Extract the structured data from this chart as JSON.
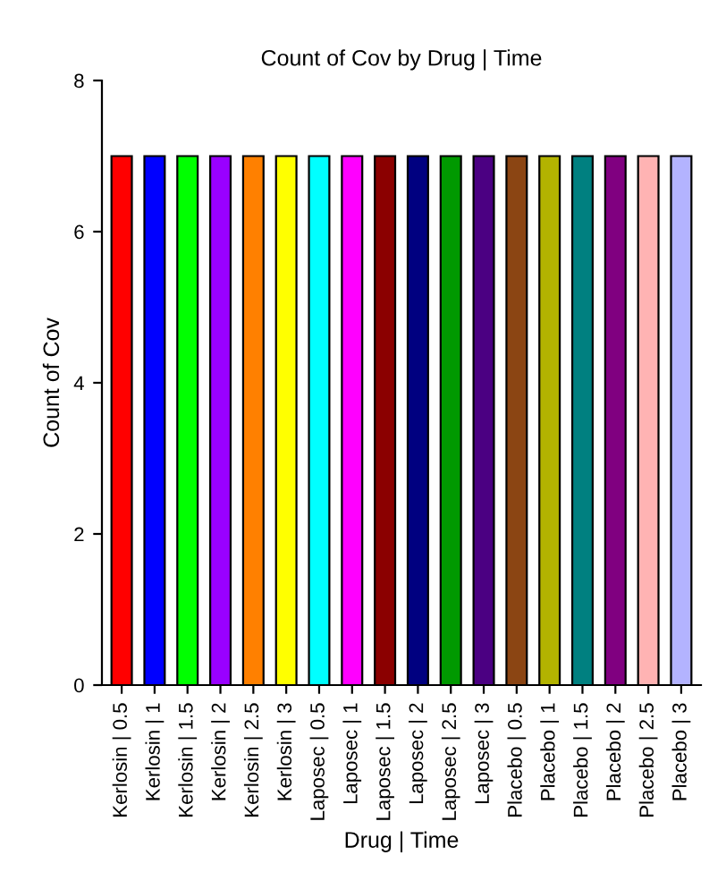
{
  "chart_data": {
    "type": "bar",
    "title": "Count of Cov by Drug | Time",
    "xlabel": "Drug | Time",
    "ylabel": "Count of Cov",
    "categories": [
      "Kerlosin | 0.5",
      "Kerlosin | 1",
      "Kerlosin | 1.5",
      "Kerlosin | 2",
      "Kerlosin | 2.5",
      "Kerlosin | 3",
      "Laposec | 0.5",
      "Laposec | 1",
      "Laposec | 1.5",
      "Laposec | 2",
      "Laposec | 2.5",
      "Laposec | 3",
      "Placebo | 0.5",
      "Placebo | 1",
      "Placebo | 1.5",
      "Placebo | 2",
      "Placebo | 2.5",
      "Placebo | 3"
    ],
    "values": [
      7,
      7,
      7,
      7,
      7,
      7,
      7,
      7,
      7,
      7,
      7,
      7,
      7,
      7,
      7,
      7,
      7,
      7
    ],
    "colors": [
      "#ff0000",
      "#0000ff",
      "#00ff00",
      "#9900ff",
      "#ff8000",
      "#ffff00",
      "#00ffff",
      "#ff00ff",
      "#8b0000",
      "#000080",
      "#009900",
      "#4b0082",
      "#8b4513",
      "#b3b300",
      "#008080",
      "#800080",
      "#ffb3b3",
      "#b3b3ff"
    ],
    "ylim": [
      0,
      8
    ],
    "yticks": [
      0,
      2,
      4,
      6,
      8
    ],
    "grid": false,
    "legend": false
  }
}
